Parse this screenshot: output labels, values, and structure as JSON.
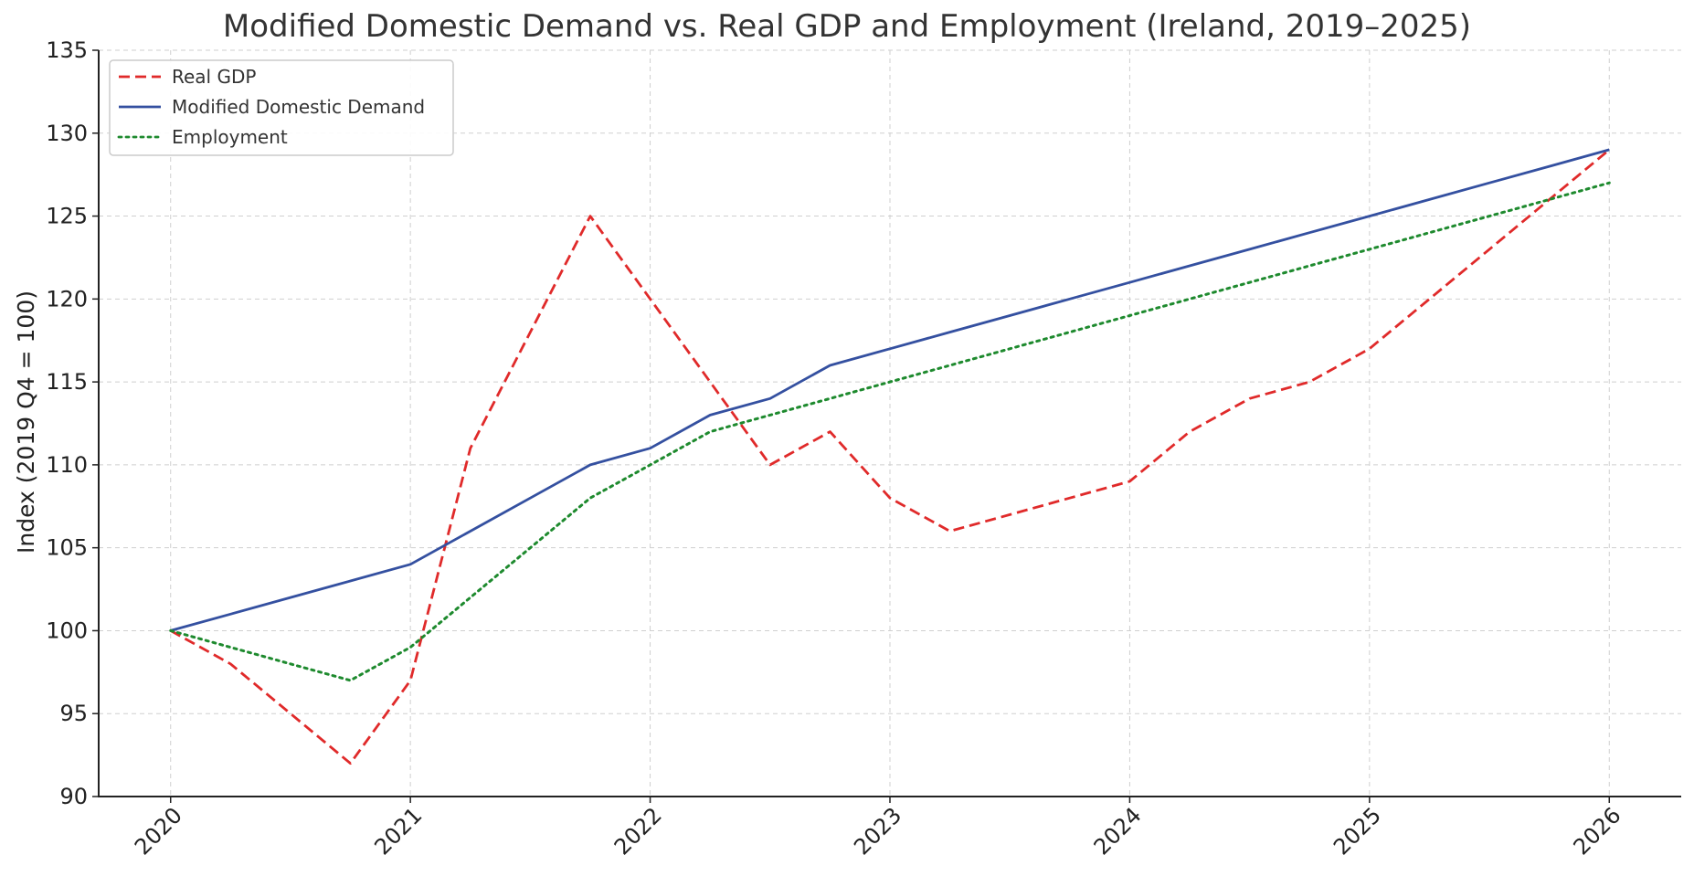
{
  "chart_data": {
    "type": "line",
    "title": "Modified Domestic Demand vs. Real GDP and Employment (Ireland, 2019–2025)",
    "xlabel": "",
    "ylabel": "Index (2019 Q4 = 100)",
    "xlim": [
      2019.7,
      2026.3
    ],
    "ylim": [
      90,
      135
    ],
    "xticks": [
      2020,
      2021,
      2022,
      2023,
      2024,
      2025,
      2026
    ],
    "xtick_labels": [
      "2020",
      "2021",
      "2022",
      "2023",
      "2024",
      "2025",
      "2026"
    ],
    "yticks": [
      90,
      95,
      100,
      105,
      110,
      115,
      120,
      125,
      130,
      135
    ],
    "ytick_labels": [
      "90",
      "95",
      "100",
      "105",
      "110",
      "115",
      "120",
      "125",
      "130",
      "135"
    ],
    "grid": true,
    "legend_position": "top-left",
    "x": [
      2020,
      2020.25,
      2020.5,
      2020.75,
      2021,
      2021.25,
      2021.5,
      2021.75,
      2022,
      2022.25,
      2022.5,
      2022.75,
      2023,
      2023.25,
      2023.5,
      2023.75,
      2024,
      2024.25,
      2024.5,
      2024.75,
      2025,
      2025.25,
      2025.5,
      2025.75,
      2026
    ],
    "series": [
      {
        "name": "Real GDP",
        "color": "#e02a2a",
        "style": "dashed",
        "values": [
          100,
          98,
          95,
          92,
          97,
          111,
          118,
          125,
          120,
          115,
          110,
          112,
          108,
          106,
          107,
          108,
          109,
          112,
          114,
          115,
          117,
          120,
          123,
          126,
          129
        ]
      },
      {
        "name": "Modified Domestic Demand",
        "color": "#3450a0",
        "style": "solid",
        "values": [
          100,
          101,
          102,
          103,
          104,
          106,
          108,
          110,
          111,
          113,
          114,
          116,
          117,
          118,
          119,
          120,
          121,
          122,
          123,
          124,
          125,
          126,
          127,
          128,
          129
        ]
      },
      {
        "name": "Employment",
        "color": "#1e8a2e",
        "style": "dotted",
        "values": [
          100,
          99,
          98,
          97,
          99,
          102,
          105,
          108,
          110,
          112,
          113,
          114,
          115,
          116,
          117,
          118,
          119,
          120,
          121,
          122,
          123,
          124,
          125,
          126,
          127
        ]
      }
    ]
  }
}
